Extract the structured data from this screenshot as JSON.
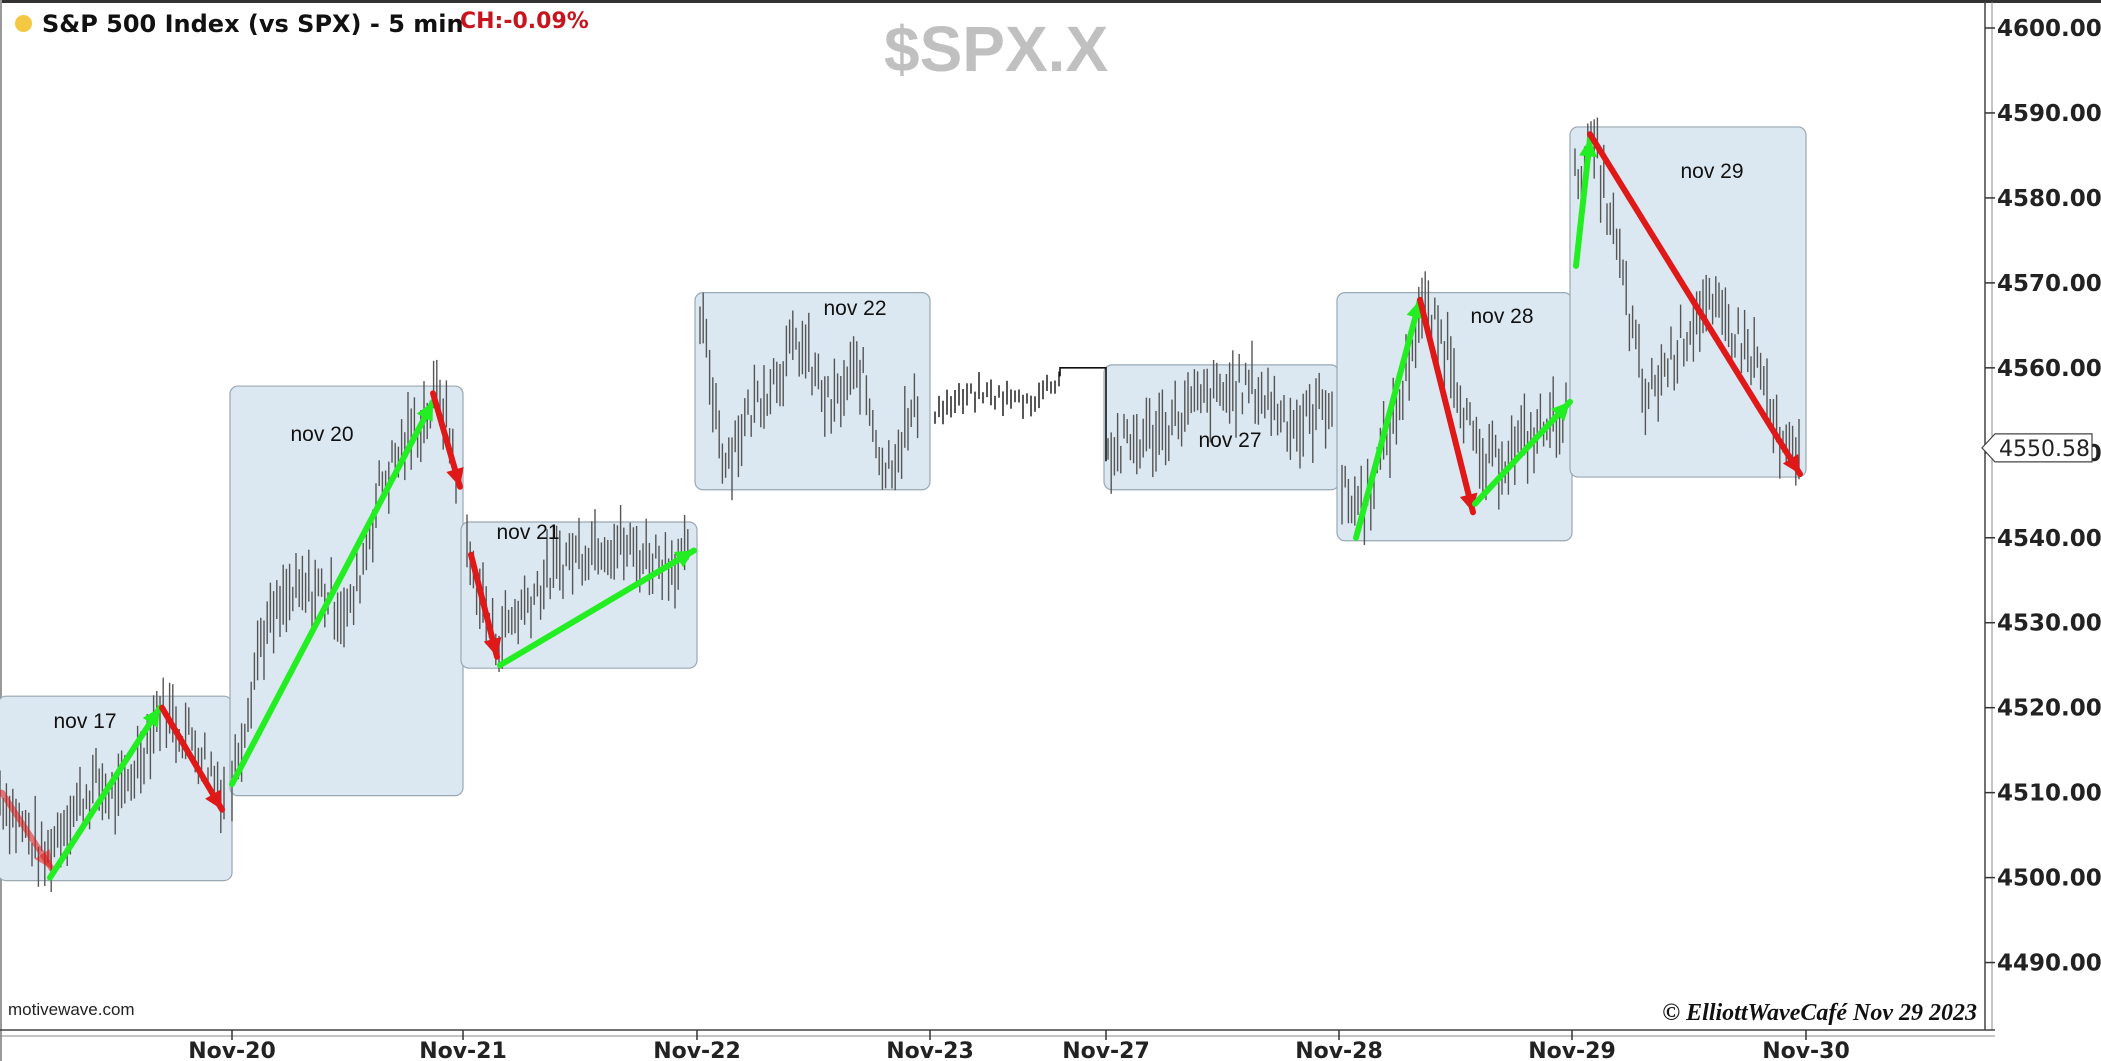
{
  "header": {
    "title": "S&P 500 Index (vs SPX) - 5 min",
    "change": "CH:-0.09%",
    "symbol": "$SPX.X",
    "status_dot_color": "#f5c842"
  },
  "footer": {
    "source": "motivewave.com",
    "copyright": "© ElliottWaveCafé Nov 29 2023"
  },
  "chart_data": {
    "type": "line",
    "ylim": [
      4484,
      4603
    ],
    "y_ticks": [
      "4600.00",
      "4590.00",
      "4580.00",
      "4570.00",
      "4560.00",
      "4550.00",
      "4540.00",
      "4530.00",
      "4520.00",
      "4510.00",
      "4500.00",
      "4490.00"
    ],
    "x_ticks": [
      "Nov-20",
      "Nov-21",
      "Nov-22",
      "Nov-23",
      "Nov-27",
      "Nov-28",
      "Nov-29",
      "Nov-30"
    ],
    "last_price": "4550.58",
    "colors": {
      "up": "#22ee22",
      "down": "#e01818",
      "box_fill": "#dce8f1",
      "box_stroke": "#9aa8b4",
      "bars": "#555555"
    },
    "sessions": [
      {
        "label": "nov 17",
        "x_start": "Nov-17 open",
        "x_end": "Nov-20",
        "low": 4500,
        "high": 4521
      },
      {
        "label": "nov 20",
        "x_start": "Nov-20",
        "x_end": "Nov-21",
        "low": 4510,
        "high": 4557.5
      },
      {
        "label": "nov 21",
        "x_start": "Nov-21",
        "x_end": "Nov-22",
        "low": 4525,
        "high": 4541.5
      },
      {
        "label": "nov 22",
        "x_start": "Nov-22",
        "x_end": "Nov-23",
        "low": 4546,
        "high": 4568.5
      },
      {
        "label": "nov 27",
        "x_start": "Nov-27",
        "x_end": "Nov-28",
        "low": 4546,
        "high": 4560
      },
      {
        "label": "nov 28",
        "x_start": "Nov-28",
        "x_end": "Nov-29",
        "low": 4540,
        "high": 4568.5
      },
      {
        "label": "nov 29",
        "x_start": "Nov-29",
        "x_end": "Nov-30",
        "low": 4547.5,
        "high": 4588
      }
    ],
    "swings": [
      {
        "direction": "down",
        "from": 4510,
        "to": 4501
      },
      {
        "direction": "up",
        "from": 4500,
        "to": 4520
      },
      {
        "direction": "down",
        "from": 4520,
        "to": 4508
      },
      {
        "direction": "up",
        "from": 4511,
        "to": 4556
      },
      {
        "direction": "down",
        "from": 4557,
        "to": 4546
      },
      {
        "direction": "down",
        "from": 4538,
        "to": 4526
      },
      {
        "direction": "up",
        "from": 4525,
        "to": 4538.5
      },
      {
        "direction": "up",
        "from": 4540,
        "to": 4568
      },
      {
        "direction": "down",
        "from": 4568,
        "to": 4543
      },
      {
        "direction": "up",
        "from": 4544,
        "to": 4556
      },
      {
        "direction": "up",
        "from": 4572,
        "to": 4587
      },
      {
        "direction": "down",
        "from": 4587.5,
        "to": 4547.5
      }
    ]
  }
}
